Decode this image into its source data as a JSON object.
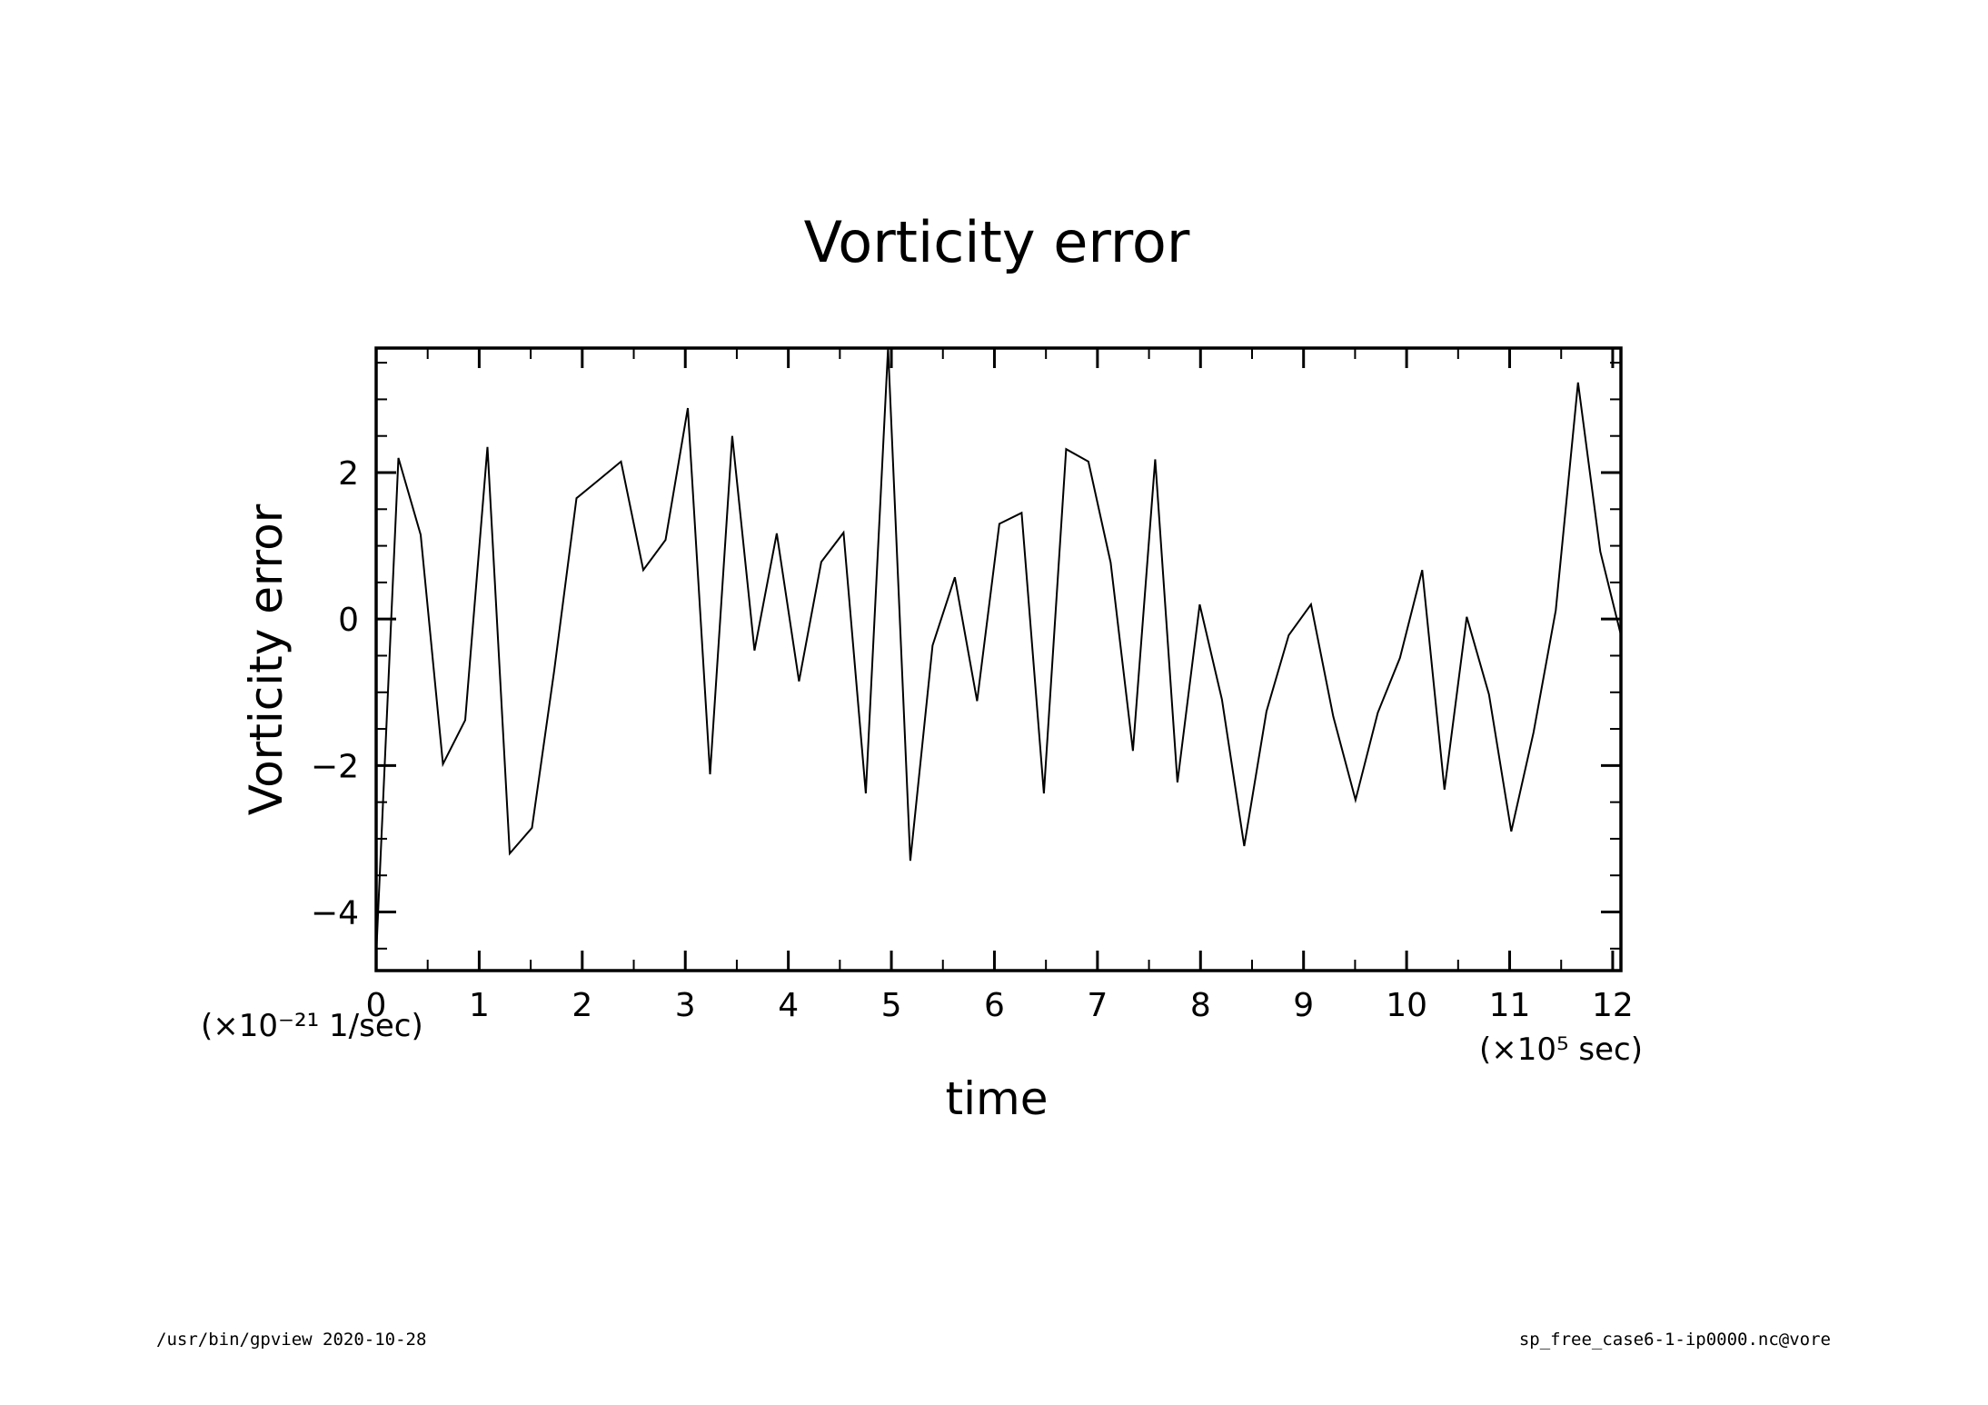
{
  "chart_data": {
    "type": "line",
    "title": "Vorticity error",
    "xlabel": "time",
    "ylabel": "Vorticity error",
    "x_unit_label": "(×10⁵ sec)",
    "y_unit_label": "(×10⁻²¹ 1/sec)",
    "xlim": [
      0,
      12.08
    ],
    "ylim": [
      -4.8,
      3.7
    ],
    "x_ticks": [
      "0",
      "1",
      "2",
      "3",
      "4",
      "5",
      "6",
      "7",
      "8",
      "9",
      "10",
      "11",
      "12"
    ],
    "y_ticks": [
      "2",
      "0",
      "−2",
      "−4"
    ],
    "grid": false,
    "series": [
      {
        "x": [
          0,
          0.216,
          0.432,
          0.648,
          0.864,
          1.08,
          1.296,
          1.512,
          1.728,
          1.944,
          2.16,
          2.376,
          2.592,
          2.808,
          3.024,
          3.24,
          3.456,
          3.672,
          3.888,
          4.104,
          4.32,
          4.536,
          4.752,
          4.968,
          5.184,
          5.4,
          5.616,
          5.832,
          6.048,
          6.264,
          6.48,
          6.696,
          6.912,
          7.128,
          7.344,
          7.56,
          7.776,
          7.992,
          8.208,
          8.424,
          8.64,
          8.856,
          9.072,
          9.288,
          9.504,
          9.72,
          9.936,
          10.152,
          10.368,
          10.584,
          10.8,
          11.016,
          11.232,
          11.448,
          11.664,
          11.88,
          12.08
        ],
        "y": [
          -4.6,
          2.2,
          1.15,
          -1.98,
          -1.38,
          2.35,
          -3.2,
          -2.85,
          -0.7,
          1.65,
          1.9,
          2.15,
          0.67,
          1.08,
          2.88,
          -2.12,
          2.5,
          -0.43,
          1.17,
          -0.85,
          0.78,
          1.18,
          -2.38,
          3.7,
          -3.3,
          -0.36,
          0.57,
          -1.12,
          1.3,
          1.45,
          -2.38,
          2.32,
          2.15,
          0.77,
          -1.8,
          2.18,
          -2.23,
          0.2,
          -1.1,
          -3.1,
          -1.26,
          -0.22,
          0.2,
          -1.33,
          -2.47,
          -1.28,
          -0.53,
          0.67,
          -2.33,
          0.03,
          -1.03,
          -2.9,
          -1.55,
          0.12,
          3.23,
          0.92,
          -0.22
        ]
      }
    ]
  },
  "footer": {
    "left": "/usr/bin/gpview   2020-10-28",
    "right": "sp_free_case6-1-ip0000.nc@vore"
  }
}
